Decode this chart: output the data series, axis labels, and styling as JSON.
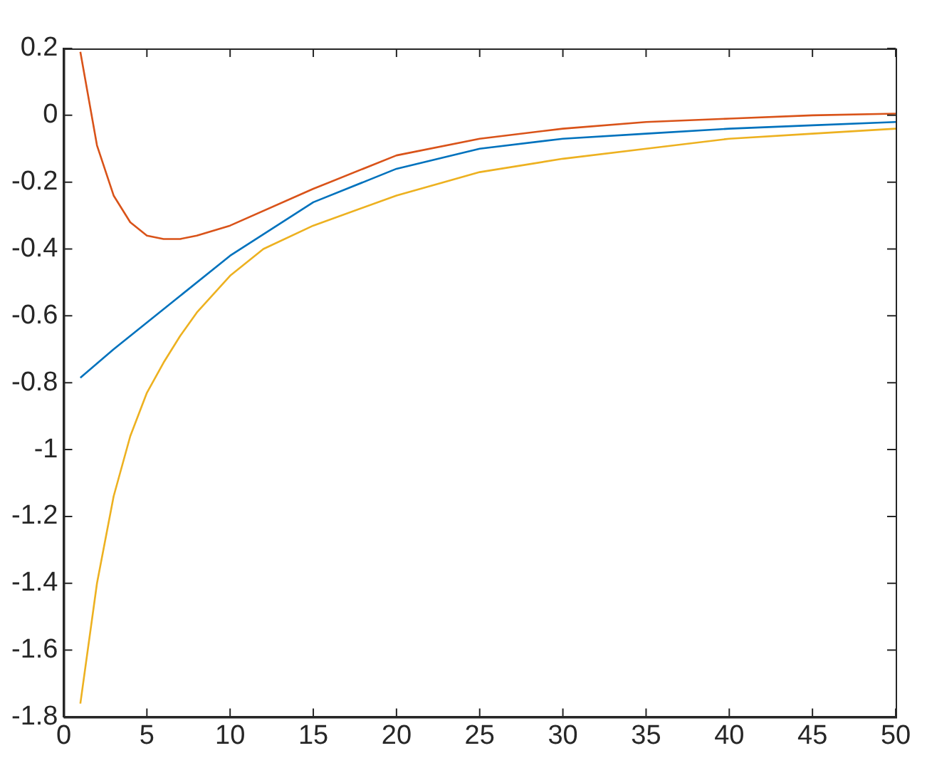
{
  "chart_data": {
    "type": "line",
    "xlim": [
      0,
      50
    ],
    "xticks": [
      0,
      5,
      10,
      15,
      20,
      25,
      30,
      35,
      40,
      45,
      50
    ],
    "ylim": [
      -1.8,
      0.2
    ],
    "yticks": [
      -1.8,
      -1.6,
      -1.4,
      -1.2,
      -1,
      -0.8,
      -0.6,
      -0.4,
      -0.2,
      0,
      0.2
    ],
    "grid": false,
    "legend": false,
    "marker": "none",
    "line_style": "solid",
    "series": [
      {
        "color": "#0072bd",
        "x": [
          1,
          3,
          5,
          7,
          10,
          15,
          20,
          25,
          30,
          35,
          40,
          45,
          50
        ],
        "values": [
          -0.785,
          -0.7,
          -0.62,
          -0.54,
          -0.42,
          -0.26,
          -0.16,
          -0.1,
          -0.07,
          -0.055,
          -0.04,
          -0.03,
          -0.02
        ]
      },
      {
        "color": "#d95319",
        "x": [
          1,
          2,
          3,
          4,
          5,
          6,
          7,
          8,
          10,
          15,
          20,
          25,
          30,
          35,
          40,
          45,
          50
        ],
        "values": [
          0.19,
          -0.09,
          -0.24,
          -0.32,
          -0.36,
          -0.37,
          -0.37,
          -0.36,
          -0.33,
          -0.22,
          -0.12,
          -0.07,
          -0.04,
          -0.02,
          -0.01,
          0,
          0.005
        ]
      },
      {
        "color": "#edb120",
        "x": [
          1,
          2,
          3,
          4,
          5,
          6,
          7,
          8,
          10,
          12,
          15,
          20,
          25,
          30,
          35,
          40,
          45,
          50
        ],
        "values": [
          -1.76,
          -1.4,
          -1.14,
          -0.96,
          -0.83,
          -0.74,
          -0.66,
          -0.59,
          -0.48,
          -0.4,
          -0.33,
          -0.24,
          -0.17,
          -0.13,
          -0.1,
          -0.07,
          -0.055,
          -0.04
        ]
      }
    ]
  }
}
